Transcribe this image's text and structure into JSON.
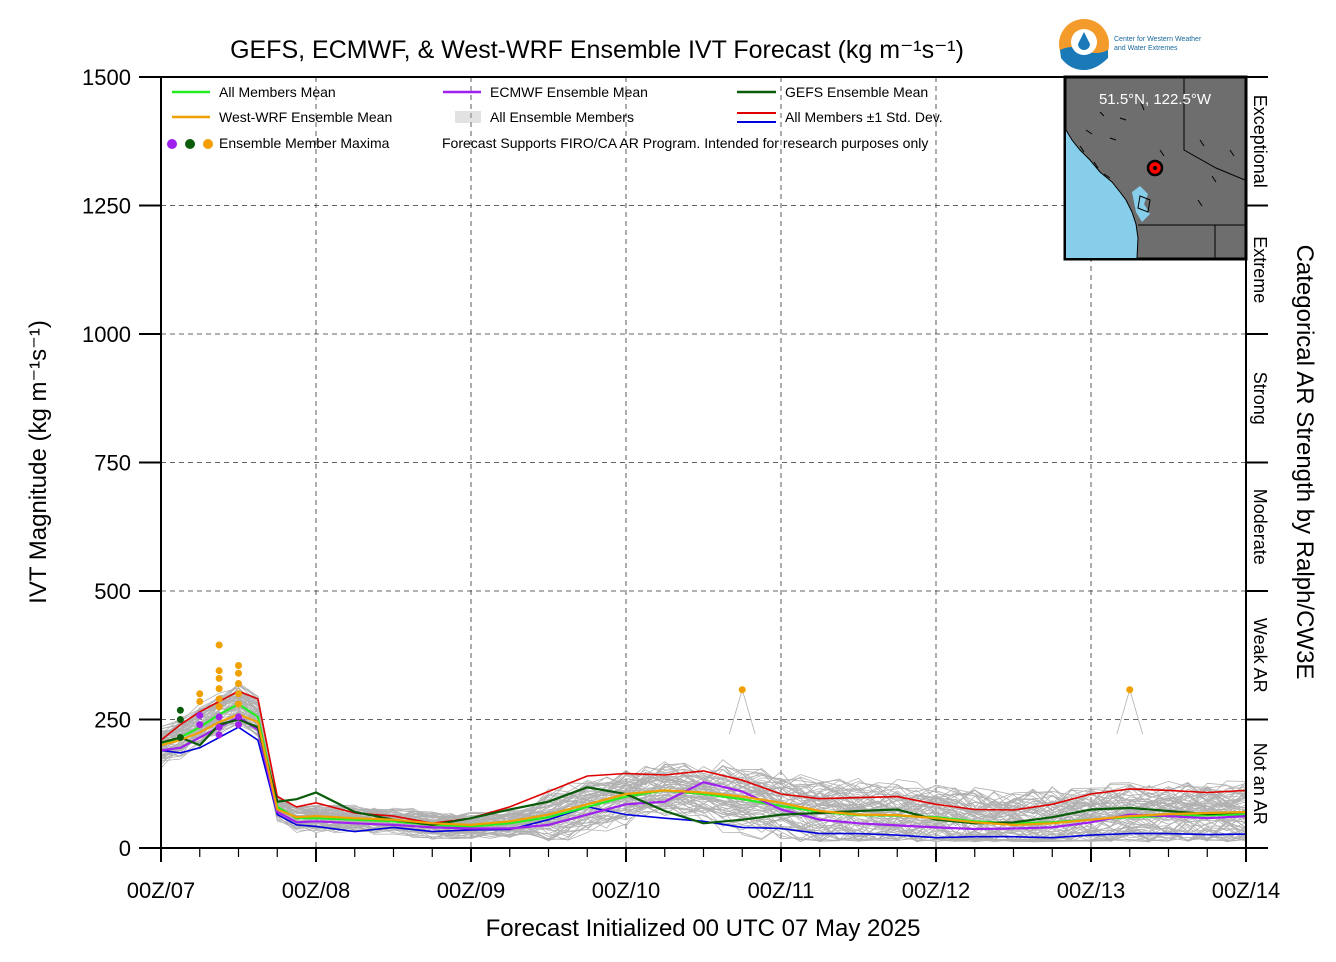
{
  "title": "GEFS, ECMWF, & West-WRF Ensemble IVT Forecast (kg m⁻¹s⁻¹)",
  "logo": {
    "text_line1": "Center for Western Weather",
    "text_line2": "and Water Extremes"
  },
  "colors": {
    "all_mean": "#22ee22",
    "westwrf_mean": "#f0a000",
    "ecmwf_mean": "#a020f0",
    "gefs_mean": "#0a5c0a",
    "members": "#b0b0b0",
    "std_upper": "#e00000",
    "std_lower": "#0000dd",
    "map_ocean": "#87ceeb",
    "map_land": "#6e6e6e",
    "marker": "#ff0000"
  },
  "legend": {
    "all_mean": "All Members Mean",
    "ecmwf_mean": "ECMWF Ensemble Mean",
    "gefs_mean": "GEFS Ensemble Mean",
    "westwrf_mean": "West-WRF Ensemble Mean",
    "all_members": "All Ensemble Members",
    "std_dev": "All Members ±1 Std. Dev.",
    "maxima": "Ensemble Member Maxima",
    "disclaimer": "Forecast Supports FIRO/CA AR Program. Intended for research purposes only"
  },
  "inset": {
    "location": "51.5°N, 122.5°W"
  },
  "chart_data": {
    "type": "line",
    "title": "GEFS, ECMWF, & West-WRF Ensemble IVT Forecast (kg m⁻¹s⁻¹)",
    "xlabel": "Forecast Initialized 00 UTC 07 May 2025",
    "ylabel": "IVT Magnitude (kg m⁻¹s⁻¹)",
    "right_label": "Categorical AR Strength by Ralph/CW3E",
    "x_unit": "forecast hour",
    "xlim": [
      0,
      168
    ],
    "ylim": [
      0,
      1500
    ],
    "y_ticks": [
      0,
      250,
      500,
      750,
      1000,
      1250,
      1500
    ],
    "x_ticks": [
      0,
      24,
      48,
      72,
      96,
      120,
      144,
      168
    ],
    "x_tick_labels": [
      "00Z/07",
      "00Z/08",
      "00Z/09",
      "00Z/10",
      "00Z/11",
      "00Z/12",
      "00Z/13",
      "00Z/14"
    ],
    "grid": true,
    "legend_position": "top-left",
    "categories": [
      {
        "label": "Not an AR",
        "from": 0,
        "to": 250
      },
      {
        "label": "Weak AR",
        "from": 250,
        "to": 500
      },
      {
        "label": "Moderate",
        "from": 500,
        "to": 750
      },
      {
        "label": "Strong",
        "from": 750,
        "to": 1000
      },
      {
        "label": "Extreme",
        "from": 1000,
        "to": 1250
      },
      {
        "label": "Exceptional",
        "from": 1250,
        "to": 1500
      }
    ],
    "series": [
      {
        "name": "All Members Mean",
        "color_key": "all_mean",
        "x": [
          0,
          3,
          6,
          9,
          12,
          15,
          18,
          21,
          24,
          30,
          36,
          42,
          48,
          54,
          60,
          66,
          72,
          78,
          84,
          90,
          96,
          102,
          108,
          114,
          120,
          126,
          132,
          138,
          144,
          150,
          156,
          162,
          168
        ],
        "y": [
          200,
          215,
          235,
          260,
          280,
          255,
          80,
          58,
          58,
          55,
          52,
          45,
          42,
          48,
          60,
          80,
          100,
          112,
          105,
          95,
          82,
          70,
          64,
          63,
          60,
          52,
          48,
          50,
          55,
          60,
          62,
          64,
          65
        ]
      },
      {
        "name": "West-WRF Ensemble Mean",
        "color_key": "westwrf_mean",
        "x": [
          0,
          3,
          6,
          9,
          12,
          15,
          18,
          21,
          24,
          30,
          36,
          42,
          48,
          54,
          60,
          66,
          72,
          78,
          84,
          90,
          96,
          102,
          108,
          114,
          120,
          126,
          132,
          138,
          144,
          150,
          156,
          162,
          168
        ],
        "y": [
          200,
          210,
          225,
          245,
          260,
          245,
          75,
          60,
          62,
          58,
          55,
          48,
          45,
          52,
          65,
          85,
          105,
          112,
          108,
          100,
          88,
          72,
          65,
          64,
          58,
          50,
          45,
          48,
          55,
          62,
          66,
          68,
          70
        ]
      },
      {
        "name": "ECMWF Ensemble Mean",
        "color_key": "ecmwf_mean",
        "x": [
          0,
          3,
          6,
          9,
          12,
          15,
          18,
          21,
          24,
          30,
          36,
          42,
          48,
          54,
          60,
          66,
          72,
          78,
          84,
          90,
          96,
          102,
          108,
          114,
          120,
          126,
          132,
          138,
          144,
          150,
          156,
          162,
          168
        ],
        "y": [
          190,
          195,
          215,
          235,
          255,
          230,
          70,
          50,
          52,
          48,
          45,
          40,
          38,
          38,
          45,
          65,
          85,
          90,
          128,
          110,
          75,
          55,
          48,
          44,
          40,
          37,
          38,
          40,
          50,
          65,
          62,
          58,
          62
        ]
      },
      {
        "name": "GEFS Ensemble Mean",
        "color_key": "gefs_mean",
        "x": [
          0,
          3,
          6,
          9,
          12,
          15,
          18,
          21,
          24,
          30,
          36,
          42,
          48,
          54,
          60,
          66,
          72,
          78,
          84,
          90,
          96,
          102,
          108,
          114,
          120,
          126,
          132,
          138,
          144,
          150,
          156,
          162,
          168
        ],
        "y": [
          205,
          215,
          200,
          240,
          250,
          235,
          90,
          95,
          108,
          70,
          55,
          45,
          58,
          75,
          90,
          118,
          105,
          72,
          48,
          55,
          65,
          68,
          72,
          75,
          55,
          48,
          50,
          60,
          75,
          78,
          72,
          66,
          70
        ]
      },
      {
        "name": "All Members +1 Std. Dev.",
        "color_key": "std_upper",
        "x": [
          0,
          3,
          6,
          9,
          12,
          15,
          18,
          21,
          24,
          30,
          36,
          42,
          48,
          54,
          60,
          66,
          72,
          78,
          84,
          90,
          96,
          102,
          108,
          114,
          120,
          126,
          132,
          138,
          144,
          150,
          156,
          162,
          168
        ],
        "y": [
          210,
          240,
          265,
          285,
          305,
          290,
          100,
          80,
          88,
          68,
          62,
          48,
          58,
          80,
          110,
          140,
          145,
          142,
          150,
          132,
          105,
          96,
          98,
          100,
          85,
          75,
          74,
          85,
          105,
          115,
          112,
          108,
          112
        ]
      },
      {
        "name": "All Members -1 Std. Dev.",
        "color_key": "std_lower",
        "x": [
          0,
          3,
          6,
          9,
          12,
          15,
          18,
          21,
          24,
          30,
          36,
          42,
          48,
          54,
          60,
          66,
          72,
          78,
          84,
          90,
          96,
          102,
          108,
          114,
          120,
          126,
          132,
          138,
          144,
          150,
          156,
          162,
          168
        ],
        "y": [
          190,
          185,
          195,
          215,
          235,
          210,
          65,
          45,
          42,
          32,
          40,
          32,
          35,
          36,
          55,
          80,
          65,
          58,
          52,
          40,
          38,
          28,
          28,
          25,
          20,
          22,
          22,
          20,
          25,
          28,
          28,
          26,
          27
        ]
      }
    ],
    "member_maxima": [
      {
        "x": 3,
        "y": 268,
        "color_key": "gefs_mean"
      },
      {
        "x": 3,
        "y": 250,
        "color_key": "gefs_mean"
      },
      {
        "x": 3,
        "y": 215,
        "color_key": "gefs_mean"
      },
      {
        "x": 6,
        "y": 300,
        "color_key": "westwrf_mean"
      },
      {
        "x": 6,
        "y": 285,
        "color_key": "westwrf_mean"
      },
      {
        "x": 6,
        "y": 258,
        "color_key": "ecmwf_mean"
      },
      {
        "x": 6,
        "y": 240,
        "color_key": "ecmwf_mean"
      },
      {
        "x": 9,
        "y": 395,
        "color_key": "westwrf_mean"
      },
      {
        "x": 9,
        "y": 345,
        "color_key": "westwrf_mean"
      },
      {
        "x": 9,
        "y": 330,
        "color_key": "westwrf_mean"
      },
      {
        "x": 9,
        "y": 310,
        "color_key": "westwrf_mean"
      },
      {
        "x": 9,
        "y": 290,
        "color_key": "westwrf_mean"
      },
      {
        "x": 9,
        "y": 275,
        "color_key": "westwrf_mean"
      },
      {
        "x": 9,
        "y": 255,
        "color_key": "ecmwf_mean"
      },
      {
        "x": 9,
        "y": 235,
        "color_key": "ecmwf_mean"
      },
      {
        "x": 9,
        "y": 220,
        "color_key": "ecmwf_mean"
      },
      {
        "x": 12,
        "y": 355,
        "color_key": "westwrf_mean"
      },
      {
        "x": 12,
        "y": 340,
        "color_key": "westwrf_mean"
      },
      {
        "x": 12,
        "y": 320,
        "color_key": "westwrf_mean"
      },
      {
        "x": 12,
        "y": 300,
        "color_key": "westwrf_mean"
      },
      {
        "x": 12,
        "y": 280,
        "color_key": "westwrf_mean"
      },
      {
        "x": 12,
        "y": 255,
        "color_key": "ecmwf_mean"
      },
      {
        "x": 12,
        "y": 240,
        "color_key": "ecmwf_mean"
      },
      {
        "x": 90,
        "y": 308,
        "color_key": "westwrf_mean"
      },
      {
        "x": 150,
        "y": 308,
        "color_key": "westwrf_mean"
      }
    ]
  }
}
